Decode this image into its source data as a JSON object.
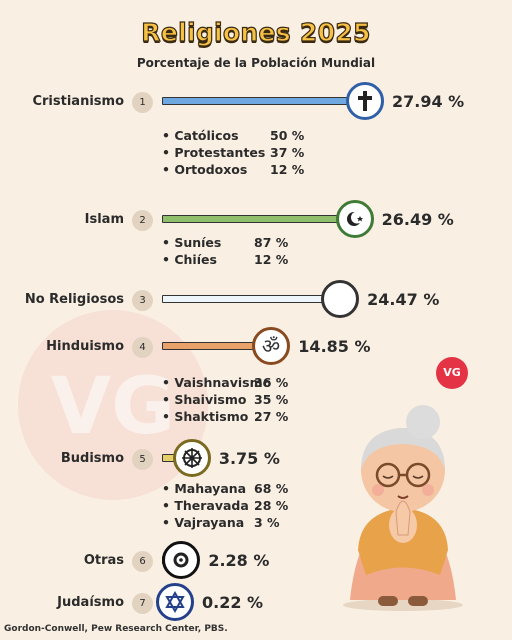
{
  "header": {
    "title": "Religiones 2025",
    "subtitle": "Porcentaje de la Población Mundial"
  },
  "watermark_text": "VG",
  "logo_text": "VG",
  "source": "Gordon-Conwell, Pew Research Center, PBS.",
  "chart_data": {
    "type": "bar",
    "title": "Religiones 2025",
    "subtitle": "Porcentaje de la Población Mundial",
    "categories": [
      "Cristianismo",
      "Islam",
      "No Religiosos",
      "Hinduismo",
      "Budismo",
      "Otras",
      "Judaísmo"
    ],
    "values": [
      27.94,
      26.49,
      24.47,
      14.85,
      3.75,
      2.28,
      0.22
    ],
    "unit": "%",
    "rows": [
      {
        "name": "Cristianismo",
        "rank": "1",
        "value": 27.94,
        "label": "27.94 %",
        "color": "#6fa8e0",
        "ring": "#2f5fa8",
        "icon": "cross-icon",
        "subs": [
          {
            "name": "Católicos",
            "value": "50 %"
          },
          {
            "name": "Protestantes",
            "value": "37 %"
          },
          {
            "name": "Ortodoxos",
            "value": "12 %"
          }
        ]
      },
      {
        "name": "Islam",
        "rank": "2",
        "value": 26.49,
        "label": "26.49 %",
        "color": "#8fbf6a",
        "ring": "#3f7a36",
        "icon": "crescent-star-icon",
        "subs": [
          {
            "name": "Suníes",
            "value": "87 %"
          },
          {
            "name": "Chiíes",
            "value": "12 %"
          }
        ]
      },
      {
        "name": "No Religiosos",
        "rank": "3",
        "value": 24.47,
        "label": "24.47 %",
        "color": "#eef6fb",
        "ring": "#333333",
        "icon": "empty-circle-icon",
        "subs": []
      },
      {
        "name": "Hinduismo",
        "rank": "4",
        "value": 14.85,
        "label": "14.85 %",
        "color": "#e9a26a",
        "ring": "#8a4a1f",
        "icon": "om-icon",
        "subs": [
          {
            "name": "Vaishnavismo",
            "value": "36 %"
          },
          {
            "name": "Shaivismo",
            "value": "35 %"
          },
          {
            "name": "Shaktismo",
            "value": "27 %"
          }
        ]
      },
      {
        "name": "Budismo",
        "rank": "5",
        "value": 3.75,
        "label": "3.75 %",
        "color": "#e6cf6a",
        "ring": "#7a6a1f",
        "icon": "dharma-wheel-icon",
        "subs": [
          {
            "name": "Mahayana",
            "value": "68 %"
          },
          {
            "name": "Theravada",
            "value": "28 %"
          },
          {
            "name": "Vajrayana",
            "value": "3 %"
          }
        ]
      },
      {
        "name": "Otras",
        "rank": "6",
        "value": 2.28,
        "label": "2.28 %",
        "color": "#222222",
        "ring": "#111111",
        "icon": "concentric-circles-icon",
        "subs": []
      },
      {
        "name": "Judaísmo",
        "rank": "7",
        "value": 0.22,
        "label": "0.22 %",
        "color": "#2f4f9a",
        "ring": "#24408a",
        "icon": "star-of-david-icon",
        "subs": []
      }
    ]
  }
}
